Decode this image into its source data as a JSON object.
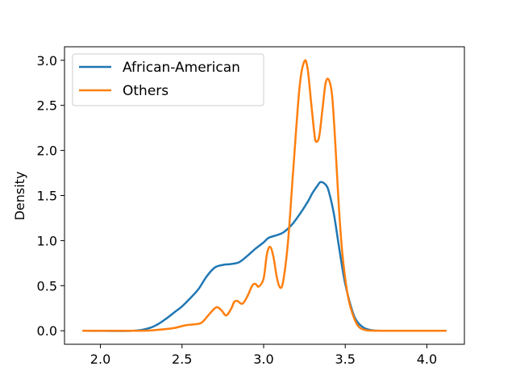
{
  "chart_data": {
    "type": "line",
    "title": "",
    "xlabel": "",
    "ylabel": "Density",
    "xlim": [
      1.78,
      4.23
    ],
    "ylim": [
      -0.15,
      3.15
    ],
    "xticks": [
      2.0,
      2.5,
      3.0,
      3.5,
      4.0
    ],
    "xtick_labels": [
      "2.0",
      "2.5",
      "3.0",
      "3.5",
      "4.0"
    ],
    "yticks": [
      0.0,
      0.5,
      1.0,
      1.5,
      2.0,
      2.5,
      3.0
    ],
    "ytick_labels": [
      "0.0",
      "0.5",
      "1.0",
      "1.5",
      "2.0",
      "2.5",
      "3.0"
    ],
    "grid": false,
    "legend_position": "upper-left",
    "series": [
      {
        "name": "African-American",
        "color": "#1f77b4",
        "points": [
          [
            1.89,
            0.0
          ],
          [
            2.2,
            0.0
          ],
          [
            2.3,
            0.03
          ],
          [
            2.35,
            0.07
          ],
          [
            2.4,
            0.13
          ],
          [
            2.45,
            0.2
          ],
          [
            2.5,
            0.27
          ],
          [
            2.55,
            0.36
          ],
          [
            2.6,
            0.46
          ],
          [
            2.65,
            0.6
          ],
          [
            2.7,
            0.7
          ],
          [
            2.75,
            0.73
          ],
          [
            2.8,
            0.74
          ],
          [
            2.85,
            0.76
          ],
          [
            2.9,
            0.83
          ],
          [
            2.95,
            0.91
          ],
          [
            3.0,
            0.98
          ],
          [
            3.03,
            1.03
          ],
          [
            3.08,
            1.06
          ],
          [
            3.12,
            1.09
          ],
          [
            3.17,
            1.17
          ],
          [
            3.22,
            1.29
          ],
          [
            3.27,
            1.43
          ],
          [
            3.3,
            1.53
          ],
          [
            3.33,
            1.61
          ],
          [
            3.35,
            1.65
          ],
          [
            3.38,
            1.62
          ],
          [
            3.4,
            1.54
          ],
          [
            3.43,
            1.3
          ],
          [
            3.46,
            0.95
          ],
          [
            3.48,
            0.72
          ],
          [
            3.5,
            0.52
          ],
          [
            3.53,
            0.3
          ],
          [
            3.56,
            0.14
          ],
          [
            3.6,
            0.05
          ],
          [
            3.65,
            0.01
          ],
          [
            3.75,
            0.0
          ],
          [
            4.12,
            0.0
          ]
        ]
      },
      {
        "name": "Others",
        "color": "#ff7f0e",
        "points": [
          [
            1.89,
            0.0
          ],
          [
            2.25,
            0.0
          ],
          [
            2.35,
            0.01
          ],
          [
            2.45,
            0.03
          ],
          [
            2.52,
            0.06
          ],
          [
            2.57,
            0.07
          ],
          [
            2.62,
            0.09
          ],
          [
            2.67,
            0.19
          ],
          [
            2.71,
            0.26
          ],
          [
            2.74,
            0.23
          ],
          [
            2.77,
            0.17
          ],
          [
            2.8,
            0.24
          ],
          [
            2.82,
            0.32
          ],
          [
            2.84,
            0.33
          ],
          [
            2.87,
            0.3
          ],
          [
            2.9,
            0.38
          ],
          [
            2.93,
            0.5
          ],
          [
            2.95,
            0.52
          ],
          [
            2.97,
            0.49
          ],
          [
            3.0,
            0.58
          ],
          [
            3.02,
            0.85
          ],
          [
            3.04,
            0.93
          ],
          [
            3.06,
            0.82
          ],
          [
            3.08,
            0.6
          ],
          [
            3.1,
            0.48
          ],
          [
            3.12,
            0.55
          ],
          [
            3.15,
            1.0
          ],
          [
            3.18,
            1.75
          ],
          [
            3.22,
            2.7
          ],
          [
            3.25,
            2.99
          ],
          [
            3.27,
            2.9
          ],
          [
            3.29,
            2.55
          ],
          [
            3.31,
            2.2
          ],
          [
            3.32,
            2.1
          ],
          [
            3.34,
            2.15
          ],
          [
            3.36,
            2.45
          ],
          [
            3.38,
            2.75
          ],
          [
            3.4,
            2.78
          ],
          [
            3.42,
            2.6
          ],
          [
            3.44,
            2.05
          ],
          [
            3.46,
            1.4
          ],
          [
            3.48,
            0.9
          ],
          [
            3.5,
            0.58
          ],
          [
            3.52,
            0.35
          ],
          [
            3.55,
            0.16
          ],
          [
            3.58,
            0.05
          ],
          [
            3.62,
            0.01
          ],
          [
            3.7,
            0.0
          ],
          [
            4.12,
            0.0
          ]
        ]
      }
    ]
  }
}
